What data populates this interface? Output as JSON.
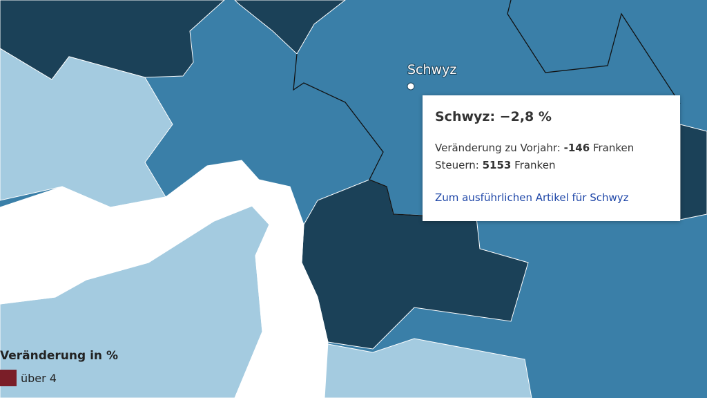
{
  "map": {
    "place_label": "Schwyz",
    "tooltip": {
      "title": "Schwyz: −2,8 %",
      "change_label": "Veränderung zu Vorjahr:",
      "change_value": "-146",
      "change_unit": "Franken",
      "tax_label": "Steuern:",
      "tax_value": "5153",
      "tax_unit": "Franken",
      "link": "Zum ausführlichen Artikel für Schwyz"
    },
    "legend": {
      "title": "Veränderung in %",
      "items": [
        {
          "label": "über 4",
          "color": "#7a1e28"
        }
      ]
    }
  }
}
